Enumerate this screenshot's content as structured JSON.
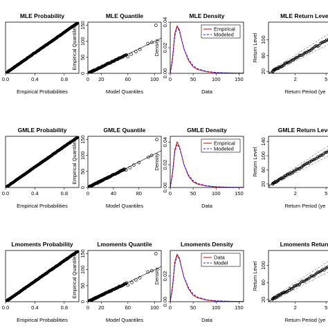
{
  "figure": {
    "layout": "3x4 grid of diagnostic panels",
    "background": "#ffffff"
  },
  "colors": {
    "ink": "#000000",
    "empirical_density": "#cc0000",
    "modeled_density": "#1a1aff",
    "ci": "#888888"
  },
  "chart_data": [
    {
      "panel": 0,
      "type": "scatter",
      "kind": "probability",
      "title": "MLE Probability",
      "xlabel": "Empirical Probabilities",
      "ylabel": "",
      "xlim": [
        0,
        1
      ],
      "ylim": [
        0,
        1
      ],
      "xticks": [
        "0.0",
        "0.4",
        "0.8"
      ],
      "xtick_values": [
        0,
        0.4,
        0.8
      ],
      "yticks": [],
      "ytick_values": [],
      "reference_line": "y = x",
      "n_points": 200
    },
    {
      "panel": 1,
      "type": "scatter",
      "kind": "quantile",
      "title": "MLE Quantile",
      "xlabel": "Model Quantiles",
      "ylabel": "Empirical Quantiles",
      "xlim": [
        0,
        110
      ],
      "ylim": [
        0,
        160
      ],
      "xticks": [
        "0",
        "20",
        "60",
        "100"
      ],
      "xtick_values": [
        0,
        20,
        60,
        100
      ],
      "yticks": [
        "0",
        "50",
        "100",
        "150"
      ],
      "ytick_values": [
        0,
        50,
        100,
        150
      ],
      "reference_line": "y = x",
      "upper_points": [
        [
          60,
          52
        ],
        [
          65,
          60
        ],
        [
          72,
          68
        ],
        [
          78,
          75
        ],
        [
          90,
          93
        ],
        [
          96,
          97
        ],
        [
          102,
          150
        ]
      ]
    },
    {
      "panel": 2,
      "type": "line",
      "kind": "density",
      "title": "MLE Density",
      "xlabel": "Data",
      "ylabel": "Density",
      "xlim": [
        0,
        160
      ],
      "ylim": [
        0,
        0.04
      ],
      "xticks": [
        "0",
        "50",
        "100",
        "150"
      ],
      "xtick_values": [
        0,
        50,
        100,
        150
      ],
      "yticks": [
        "0.00",
        "0.02",
        "0.04"
      ],
      "ytick_values": [
        0,
        0.02,
        0.04
      ],
      "legend": [
        "Empirical",
        "Modeled"
      ],
      "legend_position": "top-right",
      "series": [
        {
          "name": "Empirical",
          "style": "solid",
          "color": "#cc0000",
          "x": [
            0,
            5,
            10,
            15,
            20,
            25,
            30,
            40,
            50,
            60,
            80,
            100,
            130,
            160
          ],
          "y": [
            0,
            0.012,
            0.031,
            0.037,
            0.034,
            0.026,
            0.019,
            0.01,
            0.005,
            0.003,
            0.0012,
            0.0005,
            0.0002,
            0.0001
          ]
        },
        {
          "name": "Modeled",
          "style": "dashed",
          "color": "#1a1aff",
          "x": [
            0,
            5,
            10,
            15,
            20,
            25,
            30,
            40,
            50,
            60,
            80,
            100,
            130,
            160
          ],
          "y": [
            0,
            0.01,
            0.029,
            0.036,
            0.033,
            0.026,
            0.019,
            0.011,
            0.006,
            0.0035,
            0.0015,
            0.0007,
            0.0003,
            0.0001
          ]
        }
      ]
    },
    {
      "panel": 3,
      "type": "scatter",
      "kind": "return_level",
      "title": "MLE Return Level",
      "xlabel": "Return Period (ye",
      "ylabel": "Return Level",
      "xlim": [
        0.9,
        8
      ],
      "ylim": [
        15,
        145
      ],
      "xscale": "log",
      "xticks": [
        "2",
        "5"
      ],
      "xtick_values": [
        2,
        5
      ],
      "yticks": [
        "20",
        "60",
        "100"
      ],
      "ytick_values": [
        20,
        60,
        100
      ],
      "fit_line": [
        [
          1.0,
          20
        ],
        [
          8,
          120
        ]
      ]
    },
    {
      "panel": 4,
      "type": "scatter",
      "kind": "probability",
      "title": "GMLE Probability",
      "xlabel": "Empirical Probabilities",
      "ylabel": "",
      "xlim": [
        0,
        1
      ],
      "ylim": [
        0,
        1
      ],
      "xticks": [
        "0.0",
        "0.4",
        "0.8"
      ],
      "xtick_values": [
        0,
        0.4,
        0.8
      ],
      "yticks": [],
      "ytick_values": [],
      "reference_line": "y = x",
      "n_points": 200
    },
    {
      "panel": 5,
      "type": "scatter",
      "kind": "quantile",
      "title": "GMLE Quantile",
      "xlabel": "Model Quantiles",
      "ylabel": "Empirical Quantiles",
      "xlim": [
        0,
        115
      ],
      "ylim": [
        0,
        160
      ],
      "xticks": [
        "0",
        "40",
        "80"
      ],
      "xtick_values": [
        0,
        40,
        80
      ],
      "yticks": [
        "0",
        "50",
        "100",
        "150"
      ],
      "ytick_values": [
        0,
        50,
        100,
        150
      ],
      "reference_line": "y = x",
      "upper_points": [
        [
          60,
          55
        ],
        [
          66,
          62
        ],
        [
          72,
          70
        ],
        [
          80,
          78
        ],
        [
          95,
          95
        ],
        [
          100,
          100
        ],
        [
          108,
          150
        ]
      ]
    },
    {
      "panel": 6,
      "type": "line",
      "kind": "density",
      "title": "GMLE Density",
      "xlabel": "Data",
      "ylabel": "Density",
      "xlim": [
        0,
        160
      ],
      "ylim": [
        0,
        0.045
      ],
      "xticks": [
        "0",
        "50",
        "100",
        "150"
      ],
      "xtick_values": [
        0,
        50,
        100,
        150
      ],
      "yticks": [
        "0.00",
        "0.02",
        "0.04"
      ],
      "ytick_values": [
        0,
        0.02,
        0.04
      ],
      "legend": [
        "Empirical",
        "Modeled"
      ],
      "legend_position": "top-right",
      "series": [
        {
          "name": "Empirical",
          "style": "solid",
          "color": "#cc0000",
          "x": [
            0,
            5,
            10,
            15,
            20,
            25,
            30,
            40,
            50,
            60,
            80,
            100,
            130,
            160
          ],
          "y": [
            0,
            0.013,
            0.033,
            0.04,
            0.036,
            0.028,
            0.02,
            0.01,
            0.005,
            0.003,
            0.0012,
            0.0005,
            0.0002,
            0.0001
          ]
        },
        {
          "name": "Modeled",
          "style": "dashed",
          "color": "#1a1aff",
          "x": [
            0,
            5,
            10,
            15,
            20,
            25,
            30,
            40,
            50,
            60,
            80,
            100,
            130,
            160
          ],
          "y": [
            0,
            0.011,
            0.031,
            0.038,
            0.035,
            0.028,
            0.02,
            0.011,
            0.006,
            0.0035,
            0.0015,
            0.0007,
            0.0003,
            0.0001
          ]
        }
      ]
    },
    {
      "panel": 7,
      "type": "scatter",
      "kind": "return_level",
      "title": "GMLE Return Level",
      "xlabel": "Return Period (ye",
      "ylabel": "Return Level",
      "xlim": [
        0.9,
        8
      ],
      "ylim": [
        10,
        155
      ],
      "xscale": "log",
      "xticks": [
        "2",
        "5"
      ],
      "xtick_values": [
        2,
        5
      ],
      "yticks": [
        "20",
        "60",
        "100",
        "140"
      ],
      "ytick_values": [
        20,
        60,
        100,
        140
      ],
      "fit_line": [
        [
          1.0,
          20
        ],
        [
          8,
          135
        ]
      ]
    },
    {
      "panel": 8,
      "type": "scatter",
      "kind": "probability",
      "title": "Lmoments Probability",
      "xlabel": "Empirical Probabilities",
      "ylabel": "",
      "xlim": [
        0,
        1
      ],
      "ylim": [
        0,
        1
      ],
      "xticks": [
        "0.0",
        "0.4",
        "0.8"
      ],
      "xtick_values": [
        0,
        0.4,
        0.8
      ],
      "yticks": [],
      "ytick_values": [],
      "reference_line": "y = x",
      "n_points": 200
    },
    {
      "panel": 9,
      "type": "scatter",
      "kind": "quantile",
      "title": "Lmoments Quantile",
      "xlabel": "Model Quantiles",
      "ylabel": "Empirical Quantiles",
      "xlim": [
        0,
        110
      ],
      "ylim": [
        0,
        160
      ],
      "xticks": [
        "0",
        "20",
        "60",
        "100"
      ],
      "xtick_values": [
        0,
        20,
        60,
        100
      ],
      "yticks": [
        "0",
        "50",
        "100",
        "150"
      ],
      "ytick_values": [
        0,
        50,
        100,
        150
      ],
      "reference_line": "y = x",
      "upper_points": [
        [
          60,
          52
        ],
        [
          66,
          60
        ],
        [
          72,
          68
        ],
        [
          78,
          75
        ],
        [
          90,
          93
        ],
        [
          96,
          97
        ],
        [
          102,
          150
        ]
      ]
    },
    {
      "panel": 10,
      "type": "line",
      "kind": "density",
      "title": "Lmoments Density",
      "xlabel": "Data",
      "ylabel": "Density",
      "xlim": [
        0,
        160
      ],
      "ylim": [
        0,
        0.04
      ],
      "xticks": [
        "0",
        "50",
        "100",
        "150"
      ],
      "xtick_values": [
        0,
        50,
        100,
        150
      ],
      "yticks": [
        "0.00",
        "0.02"
      ],
      "ytick_values": [
        0,
        0.02
      ],
      "legend": [
        "Data",
        "Model"
      ],
      "legend_position": "top-right",
      "series": [
        {
          "name": "Data",
          "style": "solid",
          "color": "#cc0000",
          "x": [
            0,
            5,
            10,
            15,
            20,
            25,
            30,
            40,
            50,
            60,
            80,
            100,
            130,
            160
          ],
          "y": [
            0,
            0.012,
            0.031,
            0.037,
            0.034,
            0.026,
            0.019,
            0.01,
            0.005,
            0.003,
            0.0012,
            0.0005,
            0.0002,
            0.0001
          ]
        },
        {
          "name": "Model",
          "style": "dashed",
          "color": "#1a1aff",
          "x": [
            0,
            5,
            10,
            15,
            20,
            25,
            30,
            40,
            50,
            60,
            80,
            100,
            130,
            160
          ],
          "y": [
            0,
            0.01,
            0.029,
            0.036,
            0.033,
            0.026,
            0.019,
            0.011,
            0.006,
            0.0035,
            0.0015,
            0.0007,
            0.0003,
            0.0001
          ]
        }
      ]
    },
    {
      "panel": 11,
      "type": "scatter",
      "kind": "return_level",
      "title": "Lmoments Return",
      "xlabel": "Return Period (ye",
      "ylabel": "Return Level",
      "xlim": [
        0.9,
        8
      ],
      "ylim": [
        15,
        135
      ],
      "xscale": "log",
      "xticks": [
        "2",
        "5"
      ],
      "xtick_values": [
        2,
        5
      ],
      "yticks": [
        "20",
        "60",
        "100"
      ],
      "ytick_values": [
        20,
        60,
        100
      ],
      "fit_line": [
        [
          1.0,
          20
        ],
        [
          8,
          115
        ]
      ]
    }
  ]
}
